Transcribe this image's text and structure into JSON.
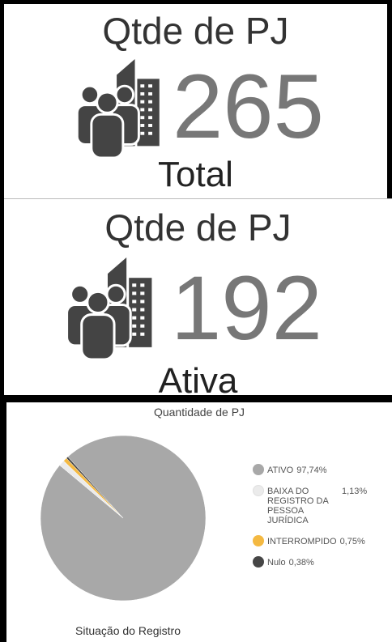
{
  "cards": [
    {
      "title": "Qtde de PJ",
      "value": "265",
      "caption": "Total"
    },
    {
      "title": "Qtde de PJ",
      "value": "192",
      "caption": "Ativa"
    }
  ],
  "chart_data": {
    "type": "pie",
    "title": "Quantidade de PJ",
    "x_label": "Situação do Registro",
    "categories": [
      "ATIVO",
      "BAIXA DO REGISTRO DA PESSOA JURÍDICA",
      "INTERROMPIDO",
      "Nulo"
    ],
    "values": [
      97.74,
      1.13,
      0.75,
      0.38
    ],
    "value_labels": [
      "97,74%",
      "1,13%",
      "0,75%",
      "0,38%"
    ],
    "colors": [
      "#a8a8a8",
      "#ebebeb",
      "#f4b942",
      "#464646"
    ],
    "legend": "right"
  }
}
